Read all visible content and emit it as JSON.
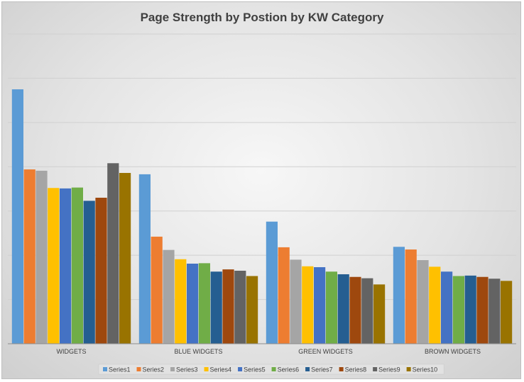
{
  "chart_data": {
    "type": "bar",
    "title": "Page Strength by Postion by KW Category",
    "xlabel": "",
    "ylabel": "",
    "categories": [
      "WIDGETS",
      "BLUE WIDGETS",
      "GREEN WIDGETS",
      "BROWN WIDGETS"
    ],
    "ylim": [
      0,
      70
    ],
    "y_gridline_step": 10,
    "y_tick_labels_shown": false,
    "grid": true,
    "legend_position": "bottom",
    "series": [
      {
        "name": "Series1",
        "color": "#5b9bd5",
        "values": [
          57.5,
          38.3,
          27.6,
          21.9
        ]
      },
      {
        "name": "Series2",
        "color": "#ed7d31",
        "values": [
          39.4,
          24.2,
          21.8,
          21.3
        ]
      },
      {
        "name": "Series3",
        "color": "#a5a5a5",
        "values": [
          39.1,
          21.2,
          19.0,
          18.9
        ]
      },
      {
        "name": "Series4",
        "color": "#ffc000",
        "values": [
          35.2,
          19.1,
          17.5,
          17.4
        ]
      },
      {
        "name": "Series5",
        "color": "#4472c4",
        "values": [
          35.1,
          18.1,
          17.3,
          16.3
        ]
      },
      {
        "name": "Series6",
        "color": "#70ad47",
        "values": [
          35.3,
          18.2,
          16.3,
          15.3
        ]
      },
      {
        "name": "Series7",
        "color": "#255e91",
        "values": [
          32.3,
          16.3,
          15.7,
          15.4
        ]
      },
      {
        "name": "Series8",
        "color": "#9e480e",
        "values": [
          33.0,
          16.8,
          15.1,
          15.1
        ]
      },
      {
        "name": "Series9",
        "color": "#636363",
        "values": [
          40.8,
          16.5,
          14.8,
          14.7
        ]
      },
      {
        "name": "Series10",
        "color": "#997300",
        "values": [
          38.6,
          15.3,
          13.4,
          14.2
        ]
      }
    ]
  }
}
